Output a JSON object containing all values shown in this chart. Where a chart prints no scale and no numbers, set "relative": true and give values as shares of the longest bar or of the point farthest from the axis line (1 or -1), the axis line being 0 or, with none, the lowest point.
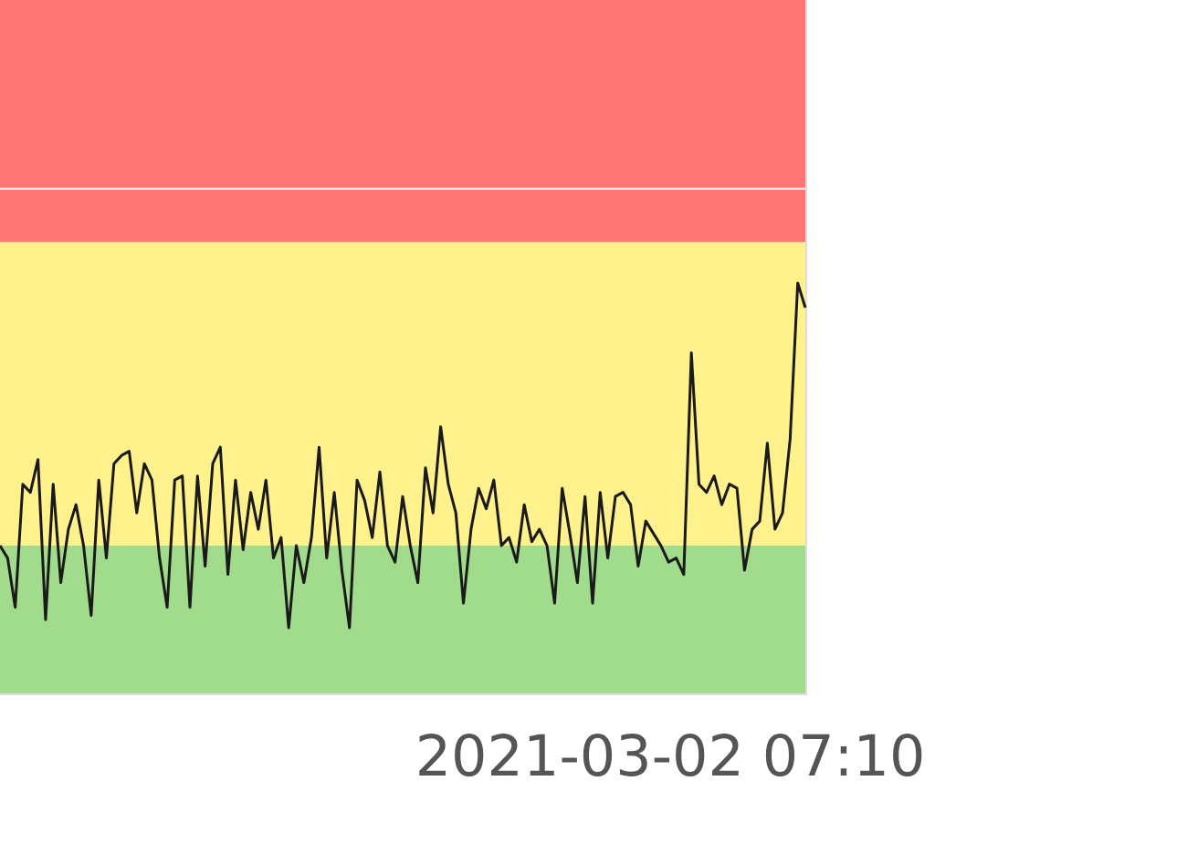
{
  "chart_data": {
    "type": "line",
    "relative": true,
    "categories": [
      null,
      null,
      null,
      null,
      null,
      null,
      null,
      null,
      null,
      null,
      null,
      null,
      null,
      null,
      null,
      null,
      null,
      null,
      null,
      null,
      null,
      null,
      null,
      null,
      null,
      null,
      null,
      null,
      null,
      null,
      null,
      null,
      null,
      null,
      null,
      null,
      null,
      null,
      null,
      null,
      null,
      null,
      null,
      null,
      null,
      null,
      null,
      null,
      null,
      null,
      null,
      null,
      null,
      null,
      null,
      null,
      null,
      null,
      null,
      null,
      null,
      null,
      null,
      null,
      null,
      null,
      null,
      null,
      null,
      null,
      null,
      null,
      null,
      null,
      null,
      null,
      null,
      null,
      null,
      null,
      null,
      null,
      null,
      null,
      null,
      null,
      null,
      null,
      null,
      null,
      null,
      null,
      null,
      null,
      null,
      null,
      null,
      null,
      null,
      null,
      null,
      null,
      null,
      null,
      null,
      null,
      null
    ],
    "series": [
      {
        "color": "#1a1a1a",
        "values": [
          0.36,
          0.33,
          0.21,
          0.51,
          0.49,
          0.57,
          0.18,
          0.51,
          0.27,
          0.4,
          0.46,
          0.36,
          0.19,
          0.52,
          0.33,
          0.56,
          0.58,
          0.59,
          0.44,
          0.56,
          0.52,
          0.33,
          0.21,
          0.52,
          0.53,
          0.21,
          0.53,
          0.31,
          0.56,
          0.6,
          0.29,
          0.52,
          0.35,
          0.49,
          0.4,
          0.52,
          0.33,
          0.38,
          0.16,
          0.36,
          0.27,
          0.38,
          0.6,
          0.33,
          0.49,
          0.3,
          0.16,
          0.52,
          0.47,
          0.38,
          0.54,
          0.36,
          0.32,
          0.48,
          0.36,
          0.27,
          0.55,
          0.44,
          0.65,
          0.51,
          0.44,
          0.22,
          0.4,
          0.5,
          0.45,
          0.52,
          0.36,
          0.38,
          0.32,
          0.46,
          0.37,
          0.4,
          0.36,
          0.22,
          0.5,
          0.39,
          0.27,
          0.48,
          0.22,
          0.49,
          0.33,
          0.48,
          0.49,
          0.46,
          0.31,
          0.42,
          0.39,
          0.36,
          0.32,
          0.33,
          0.29,
          0.83,
          0.51,
          0.49,
          0.53,
          0.46,
          0.51,
          0.5,
          0.3,
          0.4,
          0.42,
          0.61,
          0.4,
          0.44,
          0.62,
          1.0,
          0.94
        ]
      }
    ],
    "bands": [
      {
        "axis": "y",
        "from": 0,
        "to": 0.36,
        "color": "#a0dc8c"
      },
      {
        "axis": "y",
        "from": 0.36,
        "to": 1.1,
        "color": "#fff18c"
      },
      {
        "axis": "y",
        "from": 1.1,
        "to": 1.69,
        "color": "#ff7675"
      }
    ],
    "ref_lines": [
      {
        "axis": "y",
        "value": 1.23,
        "color": "#f0f0f0"
      }
    ],
    "annotations": [
      "2021-03-02 07:10"
    ],
    "grid": false
  }
}
